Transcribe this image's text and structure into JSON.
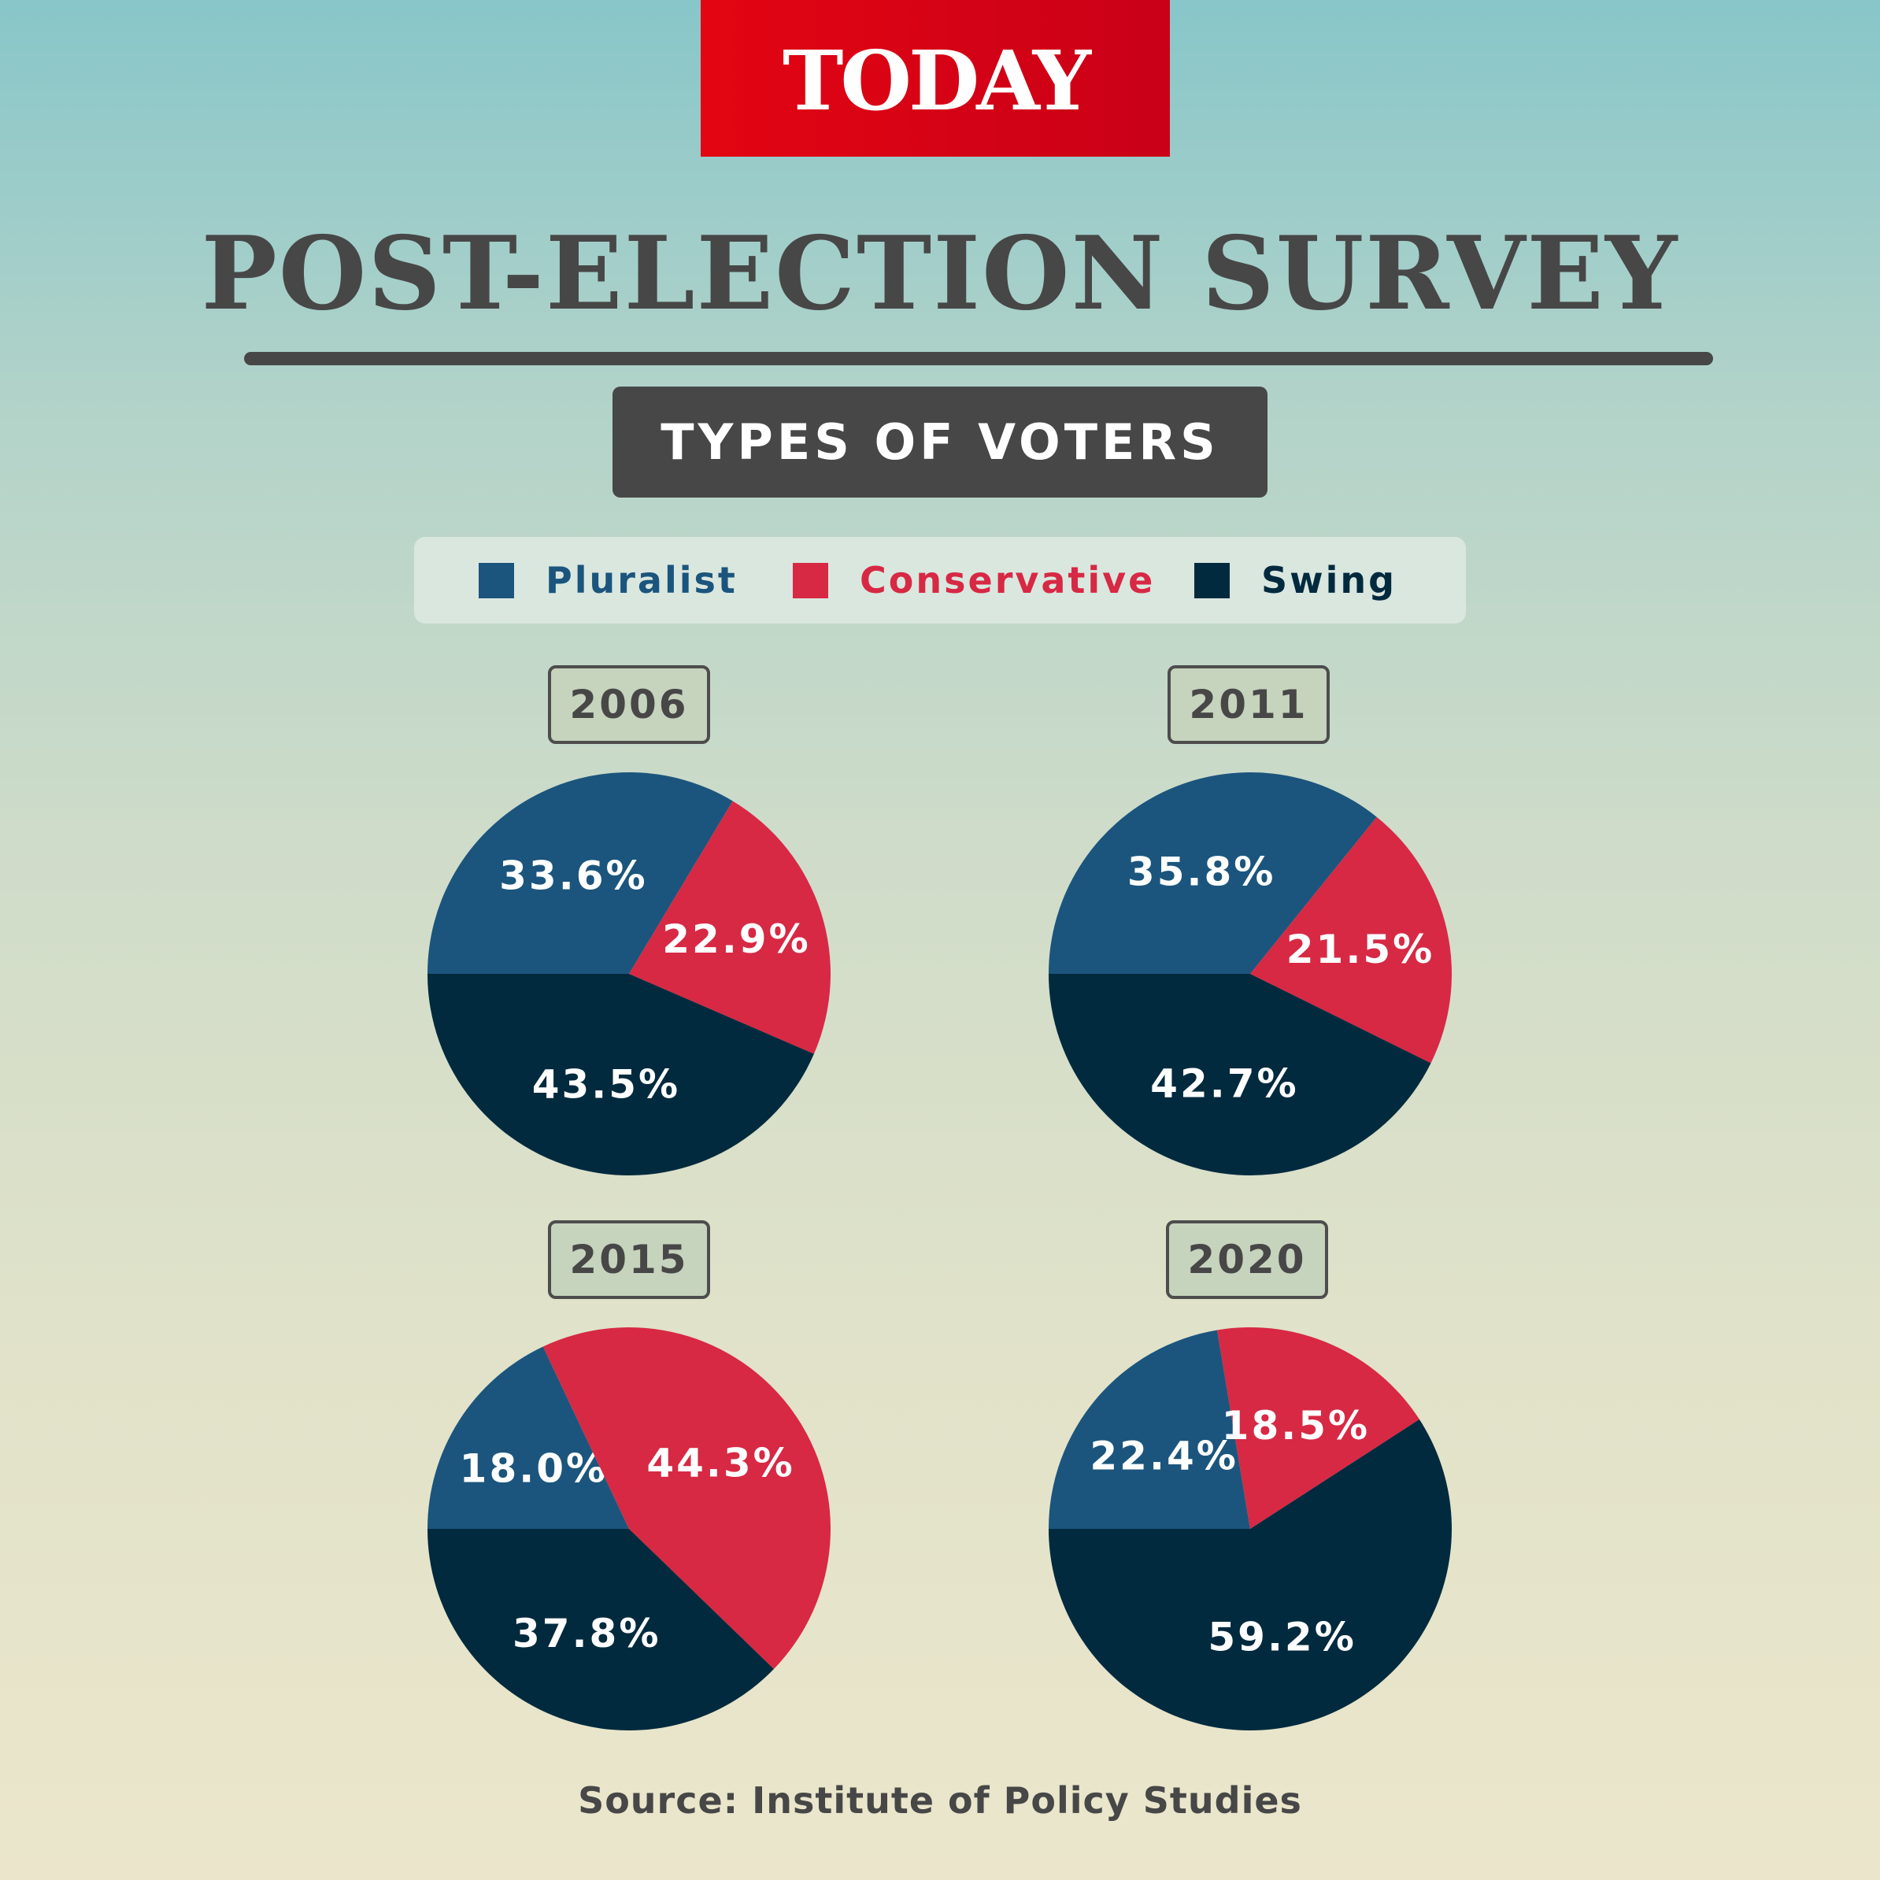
{
  "logo": {
    "text": "TODAY"
  },
  "header": {
    "title": "POST-ELECTION SURVEY",
    "subtitle": "TYPES OF VOTERS"
  },
  "legend": {
    "items": [
      {
        "label": "Pluralist",
        "color": "#1b557d"
      },
      {
        "label": "Conservative",
        "color": "#d72944"
      },
      {
        "label": "Swing",
        "color": "#022a3e"
      }
    ]
  },
  "source": "Source: Institute of Policy Studies",
  "chart_data": [
    {
      "type": "pie",
      "title": "2006",
      "categories": [
        "Pluralist",
        "Conservative",
        "Swing"
      ],
      "values": [
        33.6,
        22.9,
        43.5
      ],
      "labels": [
        "33.6%",
        "22.9%",
        "43.5%"
      ],
      "colors": [
        "#1b557d",
        "#d72944",
        "#022a3e"
      ]
    },
    {
      "type": "pie",
      "title": "2011",
      "categories": [
        "Pluralist",
        "Conservative",
        "Swing"
      ],
      "values": [
        35.8,
        21.5,
        42.7
      ],
      "labels": [
        "35.8%",
        "21.5%",
        "42.7%"
      ],
      "colors": [
        "#1b557d",
        "#d72944",
        "#022a3e"
      ]
    },
    {
      "type": "pie",
      "title": "2015",
      "categories": [
        "Pluralist",
        "Conservative",
        "Swing"
      ],
      "values": [
        18.0,
        44.3,
        37.8
      ],
      "labels": [
        "18.0%",
        "44.3%",
        "37.8%"
      ],
      "colors": [
        "#1b557d",
        "#d72944",
        "#022a3e"
      ]
    },
    {
      "type": "pie",
      "title": "2020",
      "categories": [
        "Pluralist",
        "Conservative",
        "Swing"
      ],
      "values": [
        22.4,
        18.5,
        59.2
      ],
      "labels": [
        "22.4%",
        "18.5%",
        "59.2%"
      ],
      "colors": [
        "#1b557d",
        "#d72944",
        "#022a3e"
      ]
    }
  ]
}
